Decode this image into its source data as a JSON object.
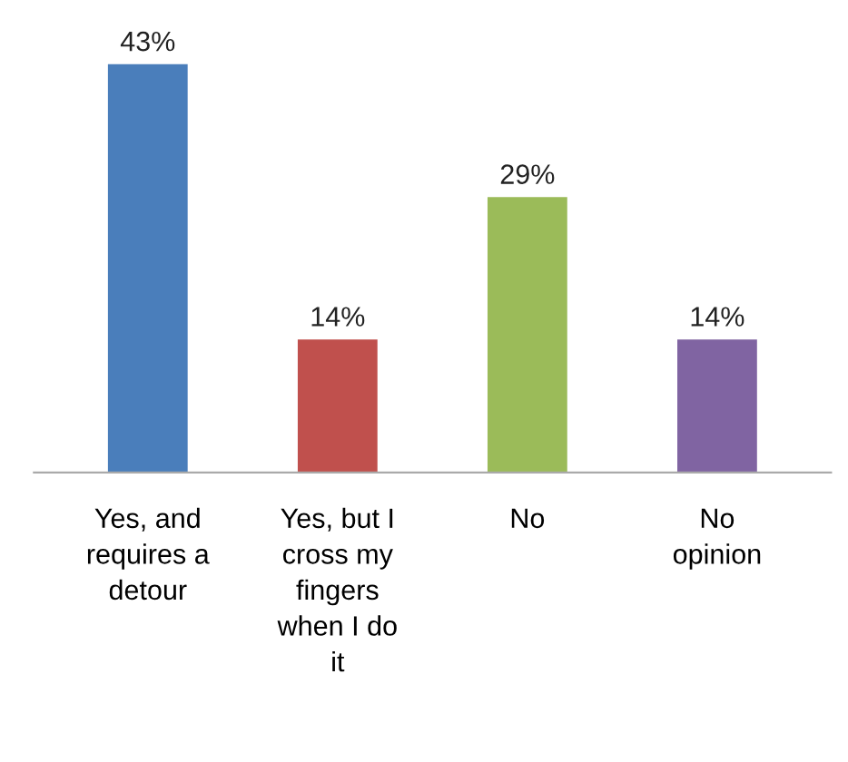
{
  "chart_data": {
    "type": "bar",
    "categories": [
      "Yes, and\nrequires a\ndetour",
      "Yes, but I\ncross my\nfingers\nwhen I do\nit",
      "No",
      "No\nopinion"
    ],
    "values": [
      43,
      14,
      29,
      14
    ],
    "colors": [
      "#4a7ebb",
      "#c0504d",
      "#9bbb59",
      "#8064a2"
    ],
    "value_labels": [
      "43%",
      "14%",
      "29%",
      "14%"
    ],
    "tick_labels": "x",
    "grid": false,
    "legend": false
  }
}
